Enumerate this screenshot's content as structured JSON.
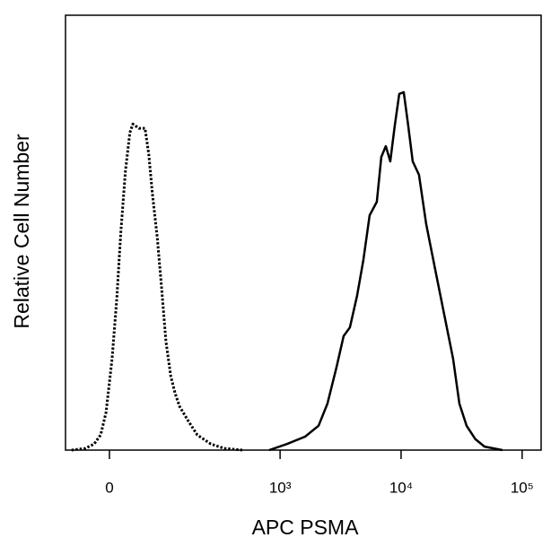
{
  "chart_data": {
    "type": "line",
    "xlabel": "APC  PSMA",
    "ylabel": "Relative Cell Number",
    "xscale": "biexponential",
    "xlim": [
      -73,
      143500
    ],
    "xticks": [
      0,
      {
        "value": 1000,
        "label": "10³"
      },
      {
        "value": 10000,
        "label": "10⁴"
      },
      {
        "value": 100000,
        "label": "10⁵"
      }
    ],
    "ylim": [
      0,
      100
    ],
    "series": [
      {
        "color": "#000000",
        "dash": "dotted",
        "x": [
          -61,
          -37,
          -23,
          -13,
          -5,
          4,
          11,
          17,
          24,
          31,
          36,
          46,
          57,
          64,
          71,
          81,
          91,
          101,
          113,
          125,
          138,
          167,
          200,
          263,
          342,
          484
        ],
        "values": [
          0,
          0.4,
          1.4,
          3.5,
          8.7,
          21,
          35,
          50,
          64,
          73,
          75,
          74,
          74,
          68,
          59,
          49,
          37,
          25,
          17,
          13,
          10,
          6.6,
          3.5,
          1.4,
          0.4,
          0
        ]
      },
      {
        "color": "#000000",
        "dash": "solid",
        "x": [
          812,
          1140,
          1610,
          2080,
          2465,
          2925,
          3354,
          3775,
          4329,
          4879,
          5499,
          6302,
          6868,
          7476,
          8139,
          8869,
          9660,
          10514,
          11458,
          12476,
          14052,
          16119,
          19122,
          22667,
          26894,
          30303,
          34733,
          41168,
          48848,
          68640
        ],
        "values": [
          0,
          1.4,
          3.1,
          5.6,
          10.7,
          19,
          26.2,
          28.2,
          35.5,
          43.7,
          54,
          57.1,
          67.4,
          69.9,
          66.4,
          74.6,
          81.9,
          82.3,
          74.6,
          66.4,
          63.3,
          52,
          41.6,
          31.3,
          21,
          10.7,
          5.6,
          2.5,
          0.8,
          0
        ]
      }
    ]
  }
}
